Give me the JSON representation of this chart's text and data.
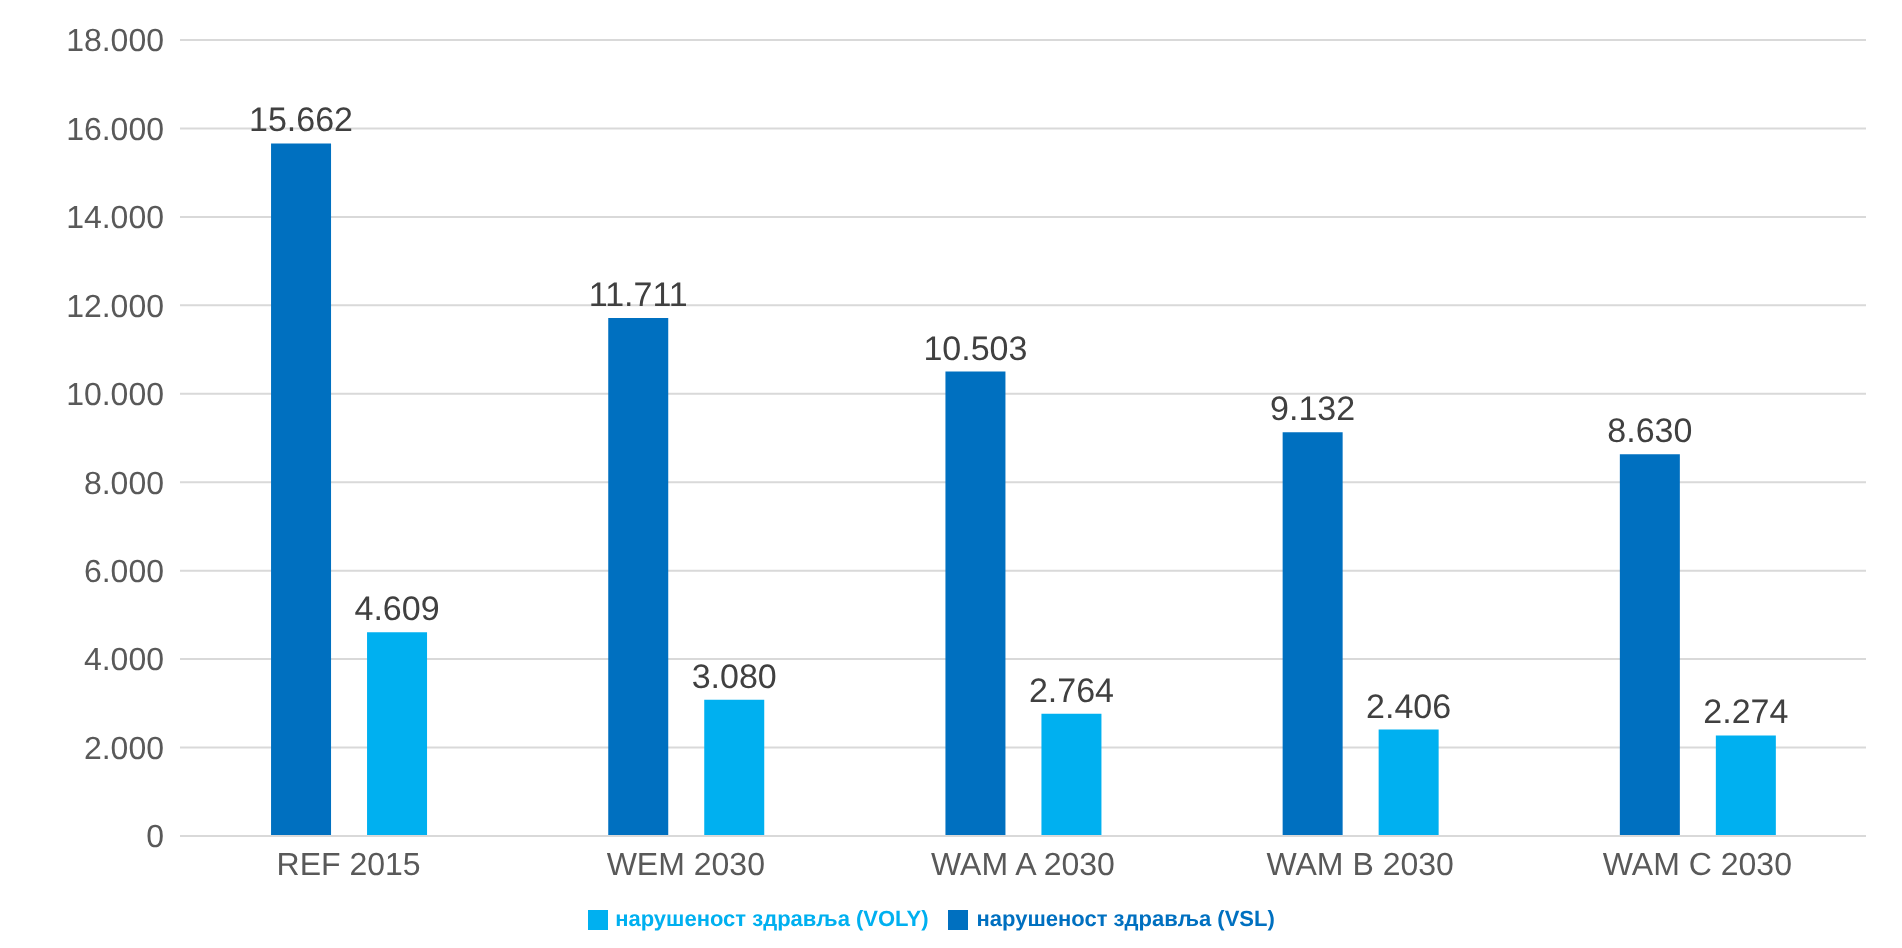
{
  "chart_data": {
    "type": "bar",
    "categories": [
      "REF 2015",
      "WEM 2030",
      "WAM A 2030",
      "WAM B 2030",
      "WAM C 2030"
    ],
    "series": [
      {
        "name": "нарушеност здравља (VSL)",
        "color": "#0070c0",
        "values": [
          15662,
          11711,
          10503,
          9132,
          8630
        ],
        "value_labels": [
          "15.662",
          "11.711",
          "10.503",
          "9.132",
          "8.630"
        ]
      },
      {
        "name": "нарушеност здравља (VOLY)",
        "color": "#00b0f0",
        "values": [
          4609,
          3080,
          2764,
          2406,
          2274
        ],
        "value_labels": [
          "4.609",
          "3.080",
          "2.764",
          "2.406",
          "2.274"
        ]
      }
    ],
    "ylim": [
      0,
      18000
    ],
    "yticks": [
      0,
      {
        "value": 2000,
        "label": "2.000"
      },
      {
        "value": 4000,
        "label": "4.000"
      },
      {
        "value": 6000,
        "label": "6.000"
      },
      {
        "value": 8000,
        "label": "8.000"
      },
      {
        "value": 10000,
        "label": "10.000"
      },
      {
        "value": 12000,
        "label": "12.000"
      },
      {
        "value": 14000,
        "label": "14.000"
      },
      {
        "value": 16000,
        "label": "16.000"
      },
      {
        "value": 18000,
        "label": "18.000"
      }
    ],
    "grid": "y",
    "legend": "bottom"
  }
}
